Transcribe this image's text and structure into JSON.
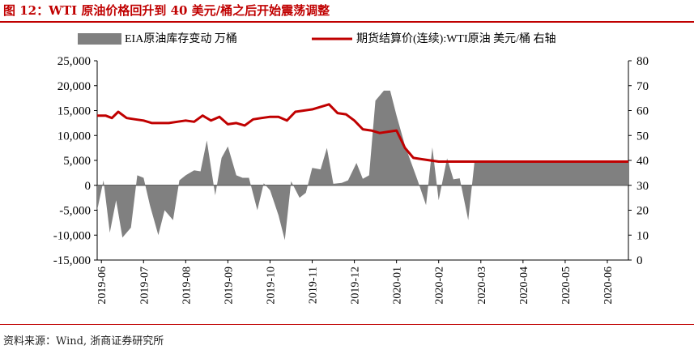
{
  "title": "图 12：WTI 原油价格回升到 40 美元/桶之后开始震荡调整",
  "source": "资料来源：Wind, 浙商证券研究所",
  "colors": {
    "accent": "#c00000",
    "area": "#808080",
    "line": "#c00000"
  },
  "chart_data": {
    "type": "area+line",
    "title": "",
    "legend": [
      {
        "name": "EIA原油库存变动 万桶",
        "kind": "area"
      },
      {
        "name": "期货结算价(连续):WTI原油 美元/桶 右轴",
        "kind": "line"
      }
    ],
    "x_labels": [
      "2019-06",
      "2019-07",
      "2019-08",
      "2019-09",
      "2019-10",
      "2019-11",
      "2019-12",
      "2020-01",
      "2020-02",
      "2020-03",
      "2020-04",
      "2020-05",
      "2020-06"
    ],
    "left_axis": {
      "min": -15000,
      "max": 25000,
      "step": 5000,
      "ticks": [
        "-15,000",
        "-10,000",
        "-5,000",
        "0",
        "5,000",
        "10,000",
        "15,000",
        "20,000",
        "25,000"
      ]
    },
    "right_axis": {
      "min": 0,
      "max": 80,
      "step": 10,
      "ticks": [
        "0",
        "10",
        "20",
        "30",
        "40",
        "50",
        "60",
        "70",
        "80"
      ]
    },
    "month_start_index": 0,
    "months_span": [
      0,
      12.6
    ],
    "series": [
      {
        "name": "EIA原油库存变动 万桶",
        "axis": "left",
        "x": [
          0,
          0.15,
          0.3,
          0.45,
          0.6,
          0.8,
          0.95,
          1.1,
          1.25,
          1.45,
          1.6,
          1.8,
          1.95,
          2.1,
          2.3,
          2.45,
          2.6,
          2.8,
          2.95,
          3.1,
          3.3,
          3.45,
          3.6,
          3.8,
          3.95,
          4.1,
          4.3,
          4.45,
          4.6,
          4.8,
          4.95,
          5.1,
          5.3,
          5.45,
          5.6,
          5.8,
          5.95,
          6.15,
          6.3,
          6.45,
          6.6,
          6.8,
          6.95,
          7.1,
          7.3,
          7.45,
          7.6,
          7.8,
          7.95,
          8.1,
          8.3,
          8.45,
          8.6,
          8.8,
          8.95,
          9.1,
          9.3,
          9.45,
          9.6,
          9.8,
          9.95,
          10.1,
          10.3,
          10.45,
          10.6,
          10.8,
          10.95,
          11.1,
          11.3,
          11.45,
          11.6,
          11.8,
          11.95,
          12.1,
          12.3,
          12.45,
          12.6
        ],
        "y": [
          -5000,
          1000,
          -9500,
          -3000,
          -10500,
          -8500,
          2000,
          1500,
          -4000,
          -10000,
          -5000,
          -7000,
          1000,
          2000,
          3000,
          2800,
          9000,
          -2000,
          5500,
          7800,
          2000,
          1500,
          1500,
          -5000,
          400,
          -1000,
          -6000,
          -11000,
          800,
          -2500,
          -1500,
          3500,
          3200,
          7500,
          300,
          500,
          1000,
          4500,
          1300,
          2000,
          17000,
          19000,
          19000,
          14000,
          8000,
          4500,
          1000,
          -4000,
          7600,
          -3000,
          5400,
          1200,
          1400,
          -7000,
          4800,
          4800,
          4800,
          4800,
          4800,
          4800,
          4800,
          4800,
          4800,
          4800,
          4800,
          4800,
          4800,
          4800,
          4800,
          4800,
          4800,
          4800,
          4800,
          4800,
          4800,
          4800,
          4800
        ]
      },
      {
        "name": "期货结算价(连续):WTI原油 美元/桶 右轴",
        "axis": "right",
        "x": [
          0,
          0.2,
          0.35,
          0.5,
          0.7,
          0.9,
          1.1,
          1.3,
          1.5,
          1.7,
          1.9,
          2.1,
          2.3,
          2.5,
          2.7,
          2.9,
          3.1,
          3.3,
          3.5,
          3.7,
          3.9,
          4.1,
          4.3,
          4.5,
          4.7,
          4.9,
          5.1,
          5.3,
          5.5,
          5.7,
          5.9,
          6.1,
          6.3,
          6.5,
          6.7,
          6.9,
          7.1,
          7.3,
          7.5,
          7.7,
          7.9,
          8.1,
          8.3,
          8.5,
          8.7,
          8.9,
          9.1,
          9.3,
          9.5,
          9.7,
          9.9,
          10.1,
          10.3,
          10.5,
          10.7,
          10.9,
          11.1,
          11.3,
          11.5,
          11.7,
          11.9,
          12.1,
          12.3,
          12.5,
          12.6
        ],
        "y": [
          58,
          58,
          57,
          59.5,
          57,
          56.5,
          56,
          55,
          55,
          55,
          55.5,
          56,
          55.5,
          58,
          56,
          57.5,
          54.5,
          55,
          54,
          56.5,
          57,
          57.5,
          57.5,
          56,
          59.5,
          60,
          60.5,
          61.5,
          62.5,
          59,
          58.5,
          56,
          52.5,
          52,
          51,
          51.5,
          52,
          45,
          41,
          40.5,
          40,
          39.5,
          39.5,
          39.5,
          39.5,
          39.5,
          39.5,
          39.5,
          39.5,
          39.5,
          39.5,
          39.5,
          39.5,
          39.5,
          39.5,
          39.5,
          39.5,
          39.5,
          39.5,
          39.5,
          39.5,
          39.5,
          39.5,
          39.5,
          39.5
        ]
      }
    ]
  }
}
